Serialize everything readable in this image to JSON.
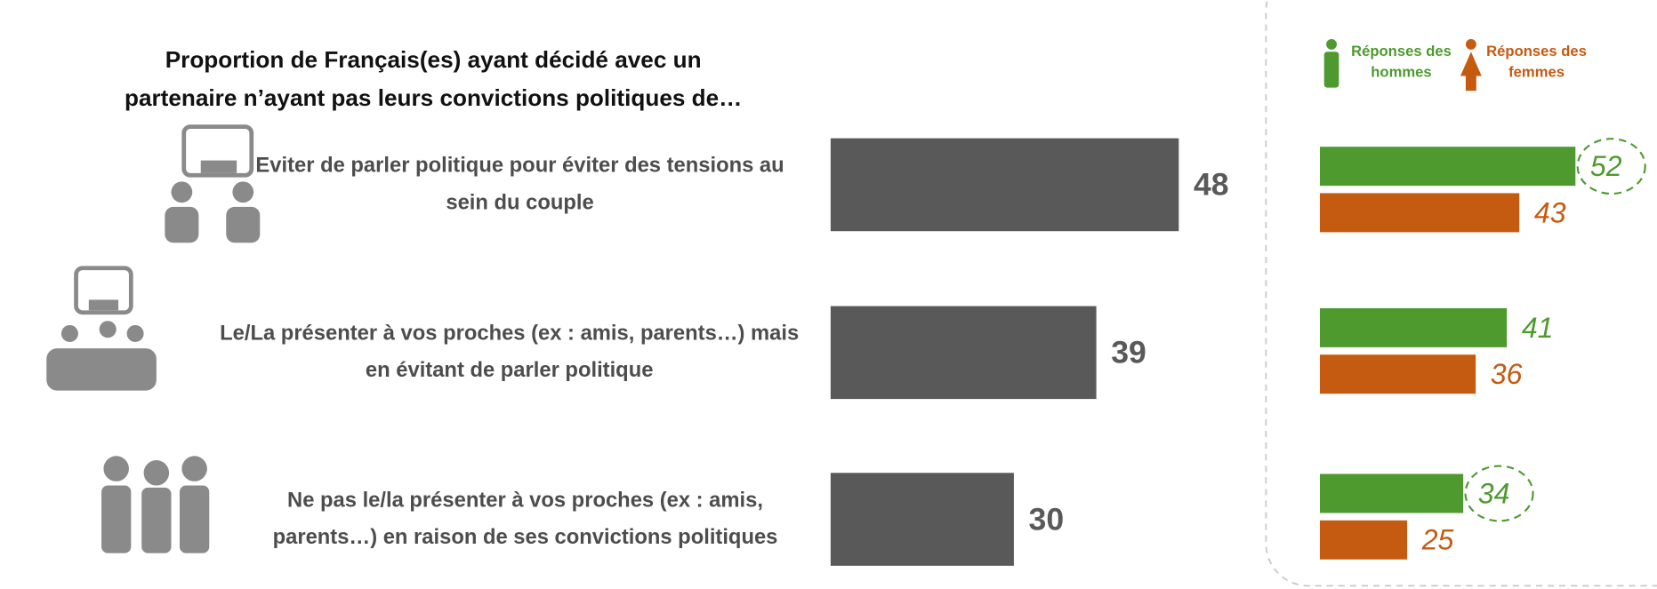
{
  "chart_data": [
    {
      "type": "bar",
      "orientation": "horizontal",
      "title": [
        "Proportion de Français(es) ayant décidé avec un",
        "partenaire n’ayant pas leurs convictions politiques de…"
      ],
      "categories": [
        "Eviter de parler politique pour éviter des tensions au sein du couple",
        "Le/La présenter à vos proches (ex : amis, parents…) mais en évitant de parler politique",
        "Ne pas le/la présenter à vos proches (ex : amis, parents…) en raison de ses convictions politiques"
      ],
      "values": [
        48,
        39,
        30
      ],
      "color": "#595959",
      "xlim": [
        10,
        60
      ]
    },
    {
      "type": "bar",
      "orientation": "horizontal",
      "series": [
        {
          "name": "Réponses des hommes",
          "color": "#4e9a2e",
          "values": [
            52,
            41,
            34
          ],
          "highlighted": [
            0,
            2
          ]
        },
        {
          "name": "Réponses des femmes",
          "color": "#c55a11",
          "values": [
            43,
            36,
            25
          ]
        }
      ],
      "xlim": [
        11,
        60
      ]
    }
  ]
}
